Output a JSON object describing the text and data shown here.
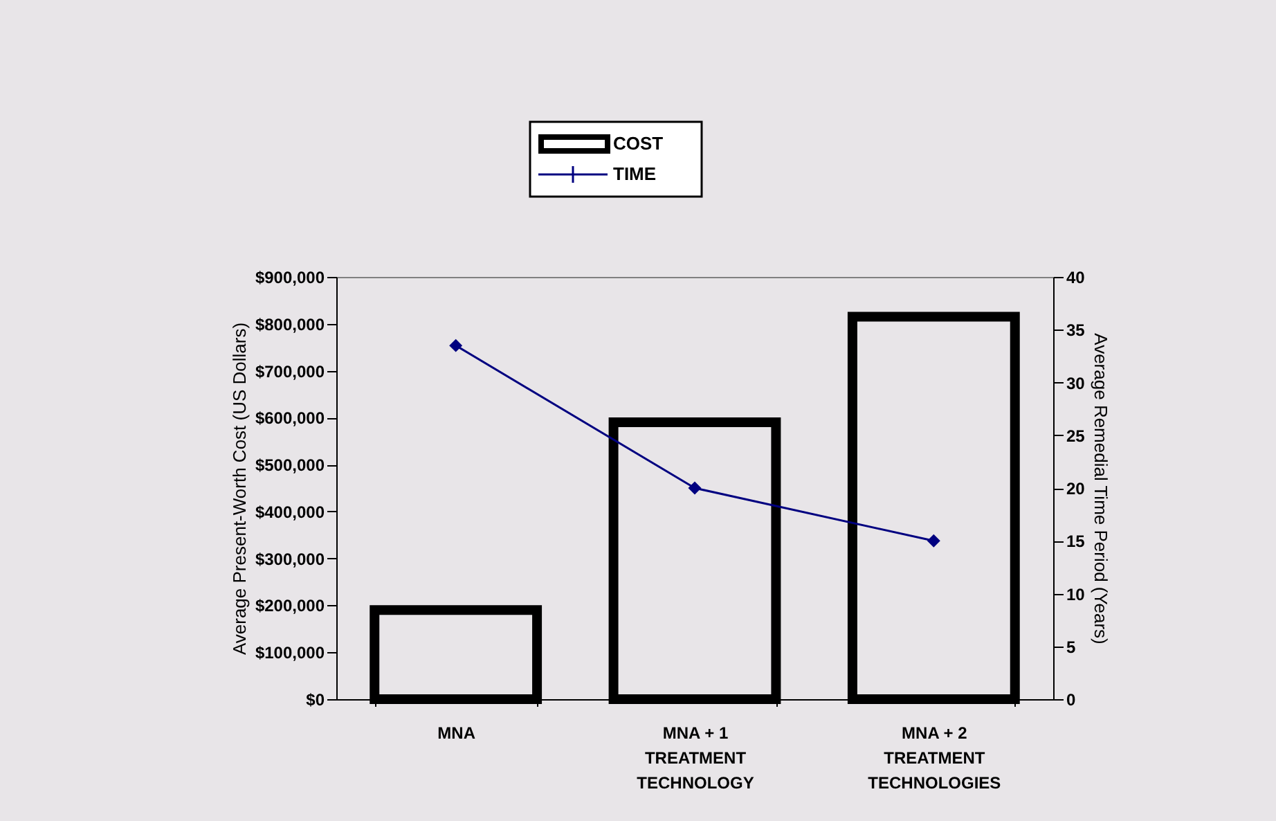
{
  "chart_data": {
    "type": "bar",
    "categories": [
      "MNA",
      "MNA + 1\nTREATMENT\nTECHNOLOGY",
      "MNA + 2\nTREATMENT\nTECHNOLOGIES"
    ],
    "series": [
      {
        "name": "COST",
        "color": "#000000",
        "values": [
          190000,
          590000,
          815000
        ]
      },
      {
        "name": "TIME",
        "type": "line",
        "axis": "y2",
        "color": "#000080",
        "values": [
          33.5,
          20,
          15
        ],
        "marker": "diamond",
        "line_style": "solid"
      }
    ],
    "ylabel": "Average Present-Worth Cost (US Dollars)",
    "y2label": "Average Remedial Time Period (Years)",
    "ylim": [
      0,
      900000
    ],
    "yticks": [
      {
        "value": 0,
        "label": "$0"
      },
      {
        "value": 100000,
        "label": "$100,000"
      },
      {
        "value": 200000,
        "label": "$200,000"
      },
      {
        "value": 300000,
        "label": "$300,000"
      },
      {
        "value": 400000,
        "label": "$400,000"
      },
      {
        "value": 500000,
        "label": "$500,000"
      },
      {
        "value": 600000,
        "label": "$600,000"
      },
      {
        "value": 700000,
        "label": "$700,000"
      },
      {
        "value": 800000,
        "label": "$800,000"
      },
      {
        "value": 900000,
        "label": "$900,000"
      }
    ],
    "y2lim": [
      0,
      40
    ],
    "y2ticks": [
      0,
      5,
      10,
      15,
      20,
      25,
      30,
      35,
      40
    ],
    "legend": "top",
    "grid": false
  }
}
